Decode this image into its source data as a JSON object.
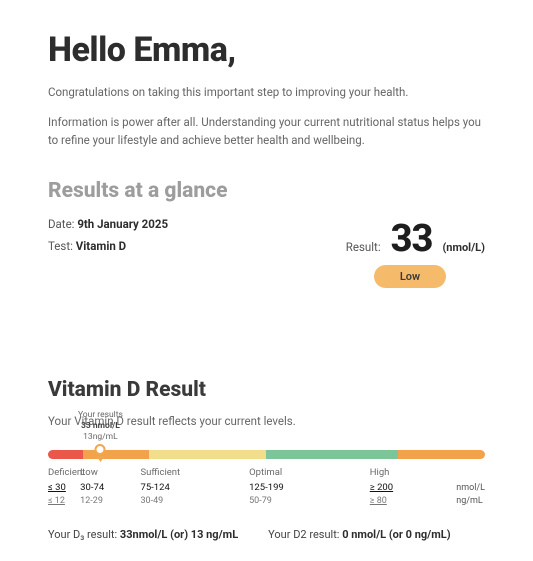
{
  "greeting": "Hello Emma,",
  "intro": {
    "p1": "Congratulations on taking this important step to improving your health.",
    "p2": "Information is power after all. Understanding your current nutritional status helps you to refine your lifestyle and achieve better health and wellbeing."
  },
  "glance": {
    "title": "Results at a glance",
    "date_label": "Date: ",
    "date_value": "9th January 2025",
    "test_label": "Test: ",
    "test_value": "Vitamin D",
    "result_label": "Result:",
    "result_value": "33",
    "result_unit": "(nmol/L)",
    "badge_text": "Low",
    "badge_color": "#f6bb6a"
  },
  "detail": {
    "title": "Vitamin D Result",
    "subtitle": "Your Vitamin D result reflects your current levels.",
    "marker": {
      "label1": "Your results",
      "label2": "33 nmol/L",
      "label3": "13ng/mL",
      "position_pct": 12
    },
    "scale": {
      "segments": [
        {
          "name": "Deficient",
          "color": "#e9584b",
          "width_pct": 8,
          "range_nmol": "≤ 30",
          "range_ng": "≤ 12",
          "underline": true
        },
        {
          "name": "Low",
          "color": "#f3a24c",
          "width_pct": 15,
          "range_nmol": "30-74",
          "range_ng": "12-29",
          "underline": false
        },
        {
          "name": "Sufficient",
          "color": "#f2dd8c",
          "width_pct": 27,
          "range_nmol": "75-124",
          "range_ng": "30-49",
          "underline": false
        },
        {
          "name": "Optimal",
          "color": "#7cc49a",
          "width_pct": 30,
          "range_nmol": "125-199",
          "range_ng": "50-79",
          "underline": false
        },
        {
          "name": "High",
          "color": "#f3a24c",
          "width_pct": 20,
          "range_nmol": "≥ 200",
          "range_ng": "≥ 80",
          "underline": true
        }
      ],
      "unit1": "nmol/L",
      "unit2": "ng/mL"
    },
    "d3_label": "Your D₃ result: ",
    "d3_value": "33nmol/L (or) 13 ng/mL",
    "d2_label": "Your D2 result: ",
    "d2_value": "0 nmol/L (or 0 ng/mL)"
  },
  "colors": {
    "text_heading": "#2d2d2d",
    "text_muted": "#9d9d9d",
    "marker_ring": "#f4a64a"
  }
}
